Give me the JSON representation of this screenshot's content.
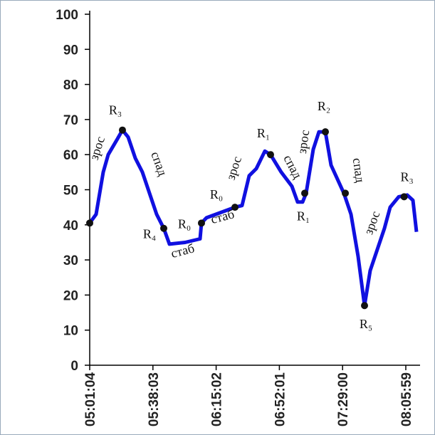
{
  "chart_data": {
    "type": "line",
    "x": [
      "05:01:04",
      "05:04:49",
      "05:08:59",
      "05:11:54",
      "05:17:19",
      "05:20:13",
      "05:23:33",
      "05:27:43",
      "05:31:53",
      "05:36:03",
      "05:40:13",
      "05:44:23",
      "05:47:43",
      "05:56:53",
      "06:05:37",
      "06:06:27",
      "06:09:22",
      "06:17:42",
      "06:26:02",
      "06:30:12",
      "06:34:22",
      "06:38:32",
      "06:43:32",
      "06:46:51",
      "06:53:06",
      "06:59:21",
      "07:02:41",
      "07:05:36",
      "07:07:41",
      "07:11:51",
      "07:15:11",
      "07:18:56",
      "07:22:16",
      "07:29:46",
      "07:33:55",
      "07:38:05",
      "07:41:50",
      "07:45:10",
      "07:49:20",
      "07:53:30",
      "07:56:50",
      "08:01:50",
      "08:06:50",
      "08:10:10",
      "08:12:14"
    ],
    "series": [
      {
        "color": "#1010e0",
        "values": [
          40.5,
          43,
          55,
          60,
          64.5,
          67,
          65,
          59,
          55,
          49,
          43,
          39,
          34.5,
          35,
          36,
          40.5,
          42,
          43.5,
          45,
          45.5,
          54,
          56,
          61,
          60,
          55,
          51,
          46.5,
          46.5,
          49,
          61.5,
          66.5,
          66.5,
          57,
          49,
          43,
          31,
          17,
          27,
          33,
          39,
          45,
          48,
          48.5,
          47,
          38
        ]
      }
    ],
    "points": [
      {
        "x": "05:01:04",
        "y": 40.5
      },
      {
        "x": "05:20:13",
        "y": 67,
        "label": "R₃"
      },
      {
        "x": "05:44:23",
        "y": 39,
        "label": "R₄"
      },
      {
        "x": "06:06:27",
        "y": 40.5,
        "label": "R₀"
      },
      {
        "x": "06:26:02",
        "y": 45,
        "label": "R₀"
      },
      {
        "x": "06:46:51",
        "y": 60,
        "label": "R₁"
      },
      {
        "x": "07:06:51",
        "y": 49,
        "label": "R₁"
      },
      {
        "x": "07:18:56",
        "y": 66.5,
        "label": "R₂"
      },
      {
        "x": "07:30:36",
        "y": 49
      },
      {
        "x": "07:41:50",
        "y": 17,
        "label": "R₅"
      },
      {
        "x": "08:05:00",
        "y": 48,
        "label": "R₃"
      }
    ],
    "annotations": [
      "зрос",
      "спад",
      "стаб",
      "стаб",
      "зрос",
      "спад",
      "зрос",
      "спад",
      "зрос"
    ],
    "xlim": [
      "05:01:04",
      "08:12:14"
    ],
    "xticks": [
      "05:01:04",
      "05:38:03",
      "06:15:02",
      "06:52:01",
      "07:29:00",
      "08:05:59"
    ],
    "ylim": [
      0,
      100
    ],
    "yticks": [
      0,
      10,
      20,
      30,
      40,
      50,
      60,
      70,
      80,
      90,
      100
    ]
  }
}
